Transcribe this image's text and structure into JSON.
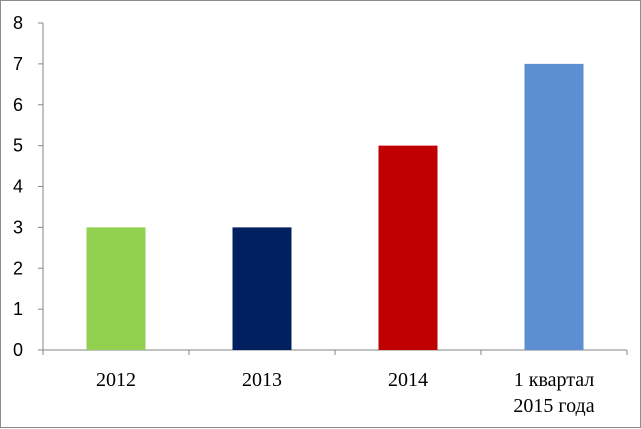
{
  "chart_data": {
    "type": "bar",
    "title": "",
    "xlabel": "",
    "ylabel": "",
    "categories": [
      [
        "2012"
      ],
      [
        "2013"
      ],
      [
        "2014"
      ],
      [
        "1 квартал",
        "2015 года"
      ]
    ],
    "values": [
      3,
      3,
      5,
      7
    ],
    "colors": [
      "#92d050",
      "#002060",
      "#c00000",
      "#5b8fd2"
    ],
    "ylim": [
      0,
      8
    ],
    "yticks": [
      0,
      1,
      2,
      3,
      4,
      5,
      6,
      7,
      8
    ],
    "grid": false,
    "legend": "none"
  }
}
